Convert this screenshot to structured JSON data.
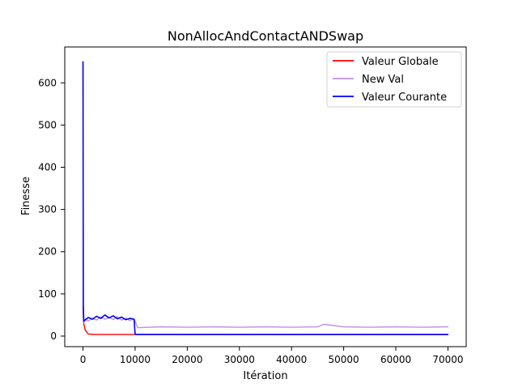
{
  "chart_data": {
    "type": "line",
    "title": "NonAllocAndContactANDSwap",
    "xlabel": "Itération",
    "ylabel": "Finesse",
    "xlim": [
      -3500,
      73500
    ],
    "ylim": [
      -25,
      685
    ],
    "xticks": [
      0,
      10000,
      20000,
      30000,
      40000,
      50000,
      60000,
      70000
    ],
    "yticks": [
      0,
      100,
      200,
      300,
      400,
      500,
      600
    ],
    "grid": false,
    "legend_position": "top-right",
    "series": [
      {
        "name": "Valeur Globale",
        "color": "#ff0000",
        "x": [
          0,
          60,
          150,
          400,
          1000,
          2000,
          5000,
          10000,
          70000
        ],
        "y": [
          70,
          45,
          30,
          15,
          5,
          4,
          4,
          4,
          4
        ]
      },
      {
        "name": "New Val",
        "color": "#bf8fef",
        "x": [
          0,
          60,
          150,
          400,
          1000,
          1800,
          2600,
          3400,
          4200,
          5000,
          5800,
          6600,
          7400,
          8200,
          9000,
          9800,
          10500,
          15000,
          20000,
          25000,
          30000,
          35000,
          40000,
          45000,
          46200,
          50000,
          55000,
          60000,
          65000,
          70000
        ],
        "y": [
          650,
          50,
          32,
          40,
          36,
          42,
          38,
          45,
          40,
          44,
          39,
          46,
          38,
          42,
          37,
          41,
          20,
          22,
          21,
          22,
          21,
          22,
          21,
          22,
          28,
          22,
          21,
          22,
          21,
          22
        ]
      },
      {
        "name": "Valeur Courante",
        "color": "#0000ff",
        "x": [
          0,
          60,
          150,
          400,
          1000,
          1800,
          2600,
          3400,
          4200,
          5000,
          5800,
          6600,
          7400,
          8200,
          9000,
          9800,
          10000,
          70000
        ],
        "y": [
          650,
          75,
          35,
          38,
          44,
          40,
          47,
          42,
          50,
          43,
          48,
          41,
          45,
          39,
          42,
          40,
          4,
          4
        ]
      }
    ]
  }
}
